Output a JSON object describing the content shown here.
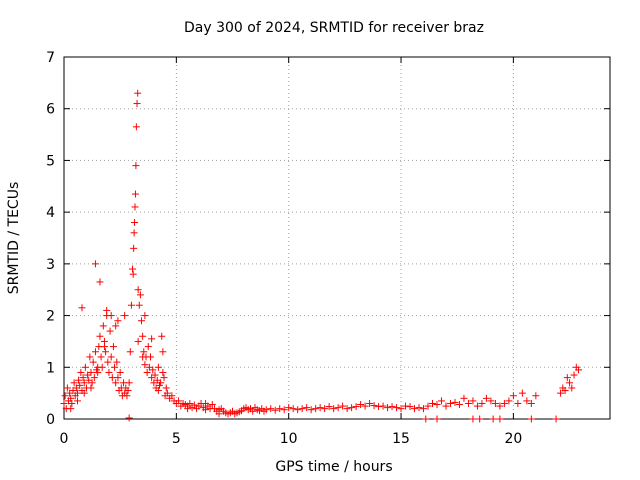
{
  "chart_data": {
    "type": "scatter",
    "title": "Day 300 of 2024, SRMTID for receiver braz",
    "xlabel": "GPS time / hours",
    "ylabel": "SRMTID / TECUs",
    "xlim": [
      0,
      24.3
    ],
    "ylim": [
      0,
      7
    ],
    "xticks": [
      0,
      5,
      10,
      15,
      20
    ],
    "yticks": [
      0,
      1,
      2,
      3,
      4,
      5,
      6,
      7
    ],
    "grid": true,
    "marker": "+",
    "color": "#ff0000",
    "series": [
      {
        "name": "SRMTID",
        "x": [
          0.0,
          0.05,
          0.1,
          0.15,
          0.2,
          0.25,
          0.3,
          0.35,
          0.4,
          0.45,
          0.5,
          0.55,
          0.6,
          0.65,
          0.7,
          0.75,
          0.8,
          0.85,
          0.9,
          0.95,
          1.0,
          1.05,
          1.1,
          1.15,
          1.2,
          1.25,
          1.3,
          1.35,
          1.4,
          1.45,
          1.5,
          1.55,
          1.6,
          1.65,
          1.7,
          1.75,
          1.8,
          1.85,
          1.9,
          1.95,
          2.0,
          2.05,
          2.1,
          2.15,
          2.2,
          2.25,
          2.3,
          2.35,
          2.4,
          2.45,
          2.5,
          2.55,
          2.6,
          2.65,
          2.7,
          2.75,
          2.8,
          2.85,
          2.9,
          2.95,
          3.0,
          3.05,
          3.08,
          3.1,
          3.12,
          3.14,
          3.16,
          3.18,
          3.2,
          3.22,
          3.25,
          3.28,
          3.3,
          3.35,
          3.4,
          3.45,
          3.5,
          3.55,
          3.6,
          3.65,
          3.7,
          3.75,
          3.8,
          3.85,
          3.9,
          3.95,
          4.0,
          4.05,
          4.1,
          4.15,
          4.2,
          4.25,
          4.3,
          4.35,
          4.4,
          4.45,
          4.5,
          4.55,
          4.6,
          4.7,
          4.8,
          4.9,
          5.0,
          5.1,
          5.2,
          5.3,
          5.4,
          5.5,
          5.6,
          5.7,
          5.8,
          5.9,
          6.0,
          6.1,
          6.2,
          6.3,
          6.4,
          6.5,
          6.6,
          6.7,
          6.8,
          6.9,
          7.0,
          7.1,
          7.2,
          7.3,
          7.4,
          7.5,
          7.6,
          7.7,
          7.8,
          7.9,
          8.0,
          8.1,
          8.2,
          8.3,
          8.4,
          8.5,
          8.6,
          8.7,
          8.8,
          8.9,
          9.0,
          9.2,
          9.4,
          9.6,
          9.8,
          10.0,
          10.2,
          10.4,
          10.6,
          10.8,
          11.0,
          11.2,
          11.4,
          11.6,
          11.8,
          12.0,
          12.2,
          12.4,
          12.6,
          12.8,
          13.0,
          13.2,
          13.4,
          13.6,
          13.8,
          14.0,
          14.2,
          14.4,
          14.6,
          14.8,
          15.0,
          15.2,
          15.4,
          15.6,
          15.8,
          16.0,
          16.2,
          16.4,
          16.6,
          16.8,
          17.0,
          17.2,
          17.4,
          17.6,
          17.8,
          18.0,
          18.2,
          18.4,
          18.6,
          18.8,
          19.0,
          19.2,
          19.4,
          19.6,
          19.8,
          20.0,
          20.2,
          20.4,
          20.6,
          20.8,
          21.0,
          22.1,
          22.2,
          22.3,
          22.4,
          22.5,
          22.6,
          22.7,
          22.8,
          22.9,
          0.3,
          0.6,
          0.9,
          1.2,
          1.5,
          1.8,
          2.1,
          2.4,
          0.8,
          1.4,
          1.9,
          2.7,
          1.6,
          2.3,
          3.3,
          3.5,
          3.6,
          3.9,
          4.2,
          4.4,
          5.5,
          6.3,
          2.9,
          6.9,
          16.1,
          16.6,
          18.2,
          18.5,
          19.1,
          19.4,
          20.8,
          21.9
        ],
        "y": [
          0.3,
          0.45,
          0.2,
          0.6,
          0.35,
          0.5,
          0.4,
          0.3,
          0.55,
          0.7,
          0.45,
          0.6,
          0.5,
          0.75,
          0.65,
          0.9,
          0.55,
          0.8,
          0.7,
          1.0,
          0.6,
          0.85,
          0.75,
          1.2,
          0.9,
          0.7,
          1.1,
          0.8,
          1.3,
          0.95,
          1.0,
          1.4,
          1.6,
          1.2,
          1.0,
          1.8,
          1.5,
          1.3,
          2.0,
          1.1,
          0.9,
          1.7,
          1.2,
          0.8,
          1.4,
          1.0,
          0.7,
          1.1,
          0.8,
          0.55,
          0.9,
          0.6,
          0.45,
          0.7,
          0.5,
          0.6,
          0.45,
          0.55,
          0.7,
          1.3,
          2.2,
          2.9,
          2.8,
          3.3,
          3.6,
          3.8,
          4.1,
          4.35,
          4.9,
          5.65,
          6.1,
          6.3,
          2.5,
          2.2,
          2.4,
          1.9,
          1.6,
          1.3,
          1.05,
          1.2,
          0.9,
          1.4,
          1.0,
          1.2,
          0.8,
          0.95,
          0.7,
          0.85,
          0.6,
          0.75,
          0.55,
          0.65,
          0.7,
          1.6,
          1.3,
          0.8,
          0.45,
          0.6,
          0.5,
          0.4,
          0.45,
          0.35,
          0.3,
          0.35,
          0.25,
          0.3,
          0.28,
          0.25,
          0.3,
          0.22,
          0.27,
          0.2,
          0.25,
          0.3,
          0.22,
          0.18,
          0.25,
          0.2,
          0.28,
          0.2,
          0.15,
          0.18,
          0.2,
          0.15,
          0.12,
          0.1,
          0.12,
          0.15,
          0.1,
          0.12,
          0.14,
          0.16,
          0.2,
          0.22,
          0.18,
          0.2,
          0.15,
          0.22,
          0.18,
          0.16,
          0.2,
          0.15,
          0.18,
          0.2,
          0.17,
          0.2,
          0.18,
          0.22,
          0.2,
          0.18,
          0.2,
          0.22,
          0.18,
          0.2,
          0.22,
          0.2,
          0.24,
          0.2,
          0.22,
          0.25,
          0.2,
          0.22,
          0.24,
          0.28,
          0.25,
          0.3,
          0.26,
          0.24,
          0.25,
          0.22,
          0.24,
          0.22,
          0.2,
          0.25,
          0.24,
          0.2,
          0.22,
          0.2,
          0.25,
          0.3,
          0.28,
          0.35,
          0.25,
          0.3,
          0.32,
          0.28,
          0.4,
          0.3,
          0.35,
          0.25,
          0.3,
          0.4,
          0.35,
          0.3,
          0.25,
          0.3,
          0.35,
          0.45,
          0.3,
          0.5,
          0.35,
          0.3,
          0.45,
          0.5,
          0.6,
          0.55,
          0.8,
          0.7,
          0.6,
          0.85,
          1.0,
          0.95,
          0.2,
          0.35,
          0.5,
          0.6,
          0.9,
          1.4,
          2.0,
          1.9,
          2.15,
          3.0,
          2.1,
          2.0,
          2.65,
          1.8,
          1.5,
          1.2,
          2.0,
          1.55,
          1.0,
          0.9,
          0.2,
          0.3,
          0.02,
          0.1,
          0.0,
          0.0,
          0.0,
          0.0,
          0.0,
          0.0,
          0.0,
          0.0
        ]
      }
    ]
  }
}
